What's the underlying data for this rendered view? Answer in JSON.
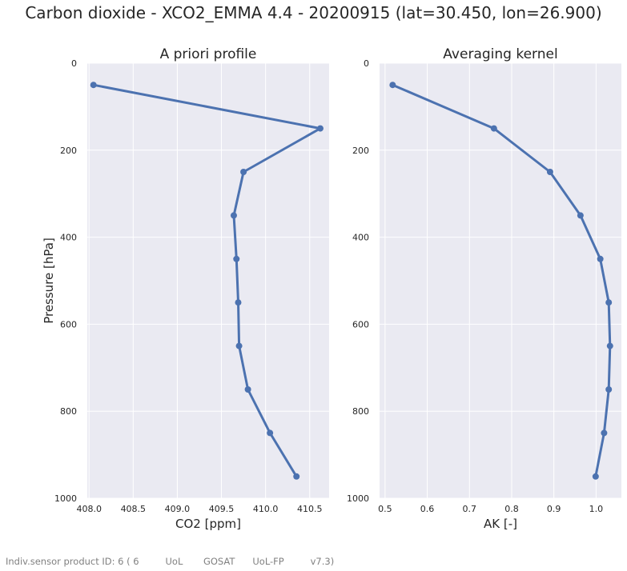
{
  "figure": {
    "title": "Carbon dioxide - XCO2_EMMA 4.4 - 20200915 (lat=30.450, lon=26.900)",
    "footer": "Indiv.sensor product ID: 6 ( 6         UoL       GOSAT      UoL-FP         v7.3)"
  },
  "colors": {
    "background": "#eaeaf2",
    "grid": "#ffffff",
    "line": "#4c72b0"
  },
  "chart_data": [
    {
      "type": "line",
      "title": "A priori profile",
      "xlabel": "CO2 [ppm]",
      "ylabel": "Pressure [hPa]",
      "xlim": [
        407.98,
        410.72
      ],
      "ylim": [
        1000,
        0
      ],
      "y_inverted": true,
      "grid": true,
      "xticks": [
        "408.0",
        "408.5",
        "409.0",
        "409.5",
        "410.0",
        "410.5"
      ],
      "yticks": [
        "0",
        "200",
        "400",
        "600",
        "800",
        "1000"
      ],
      "series": [
        {
          "x": [
            408.05,
            410.62,
            409.75,
            409.64,
            409.67,
            409.69,
            409.7,
            409.8,
            410.05,
            410.35
          ],
          "y": [
            50,
            150,
            250,
            350,
            450,
            550,
            650,
            750,
            850,
            950
          ]
        }
      ]
    },
    {
      "type": "line",
      "title": "Averaging kernel",
      "xlabel": "AK [-]",
      "ylabel": "",
      "xlim": [
        0.487,
        1.06
      ],
      "ylim": [
        1000,
        0
      ],
      "y_inverted": true,
      "grid": true,
      "xticks": [
        "0.5",
        "0.6",
        "0.7",
        "0.8",
        "0.9",
        "1.0"
      ],
      "yticks": [
        "0",
        "200",
        "400",
        "600",
        "800",
        "1000"
      ],
      "series": [
        {
          "x": [
            0.518,
            0.758,
            0.891,
            0.963,
            1.01,
            1.03,
            1.033,
            1.03,
            1.019,
            0.999
          ],
          "y": [
            50,
            150,
            250,
            350,
            450,
            550,
            650,
            750,
            850,
            950
          ]
        }
      ]
    }
  ]
}
